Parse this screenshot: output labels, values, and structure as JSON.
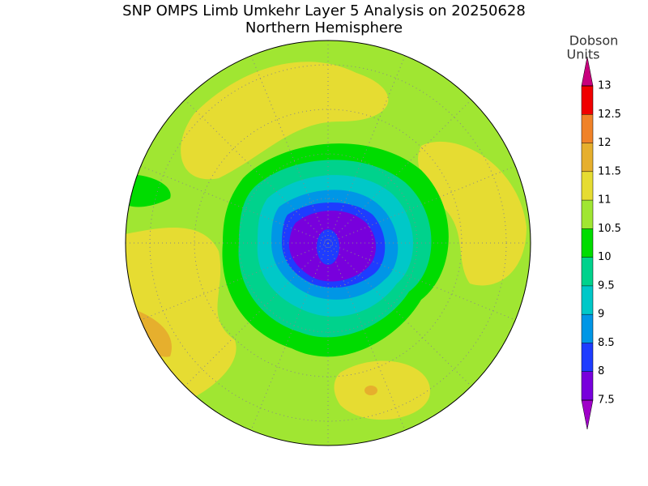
{
  "map": {
    "title": "SNP OMPS Limb Umkehr Layer 5 Analysis on 20250628",
    "subtitle": "Northern Hemisphere",
    "colorbar": {
      "label": [
        "Dobson",
        "Units"
      ],
      "ticks": [
        7.5,
        8,
        8.5,
        9,
        9.5,
        10,
        10.5,
        11,
        11.5,
        12,
        12.5,
        13
      ],
      "colors": [
        "#a000c8",
        "#7800dc",
        "#1e3cff",
        "#0096e6",
        "#00c8c8",
        "#00d28c",
        "#00dc00",
        "#a0e632",
        "#e6dc32",
        "#e6af2d",
        "#f08228",
        "#f00000",
        "#c8007d"
      ]
    }
  }
}
